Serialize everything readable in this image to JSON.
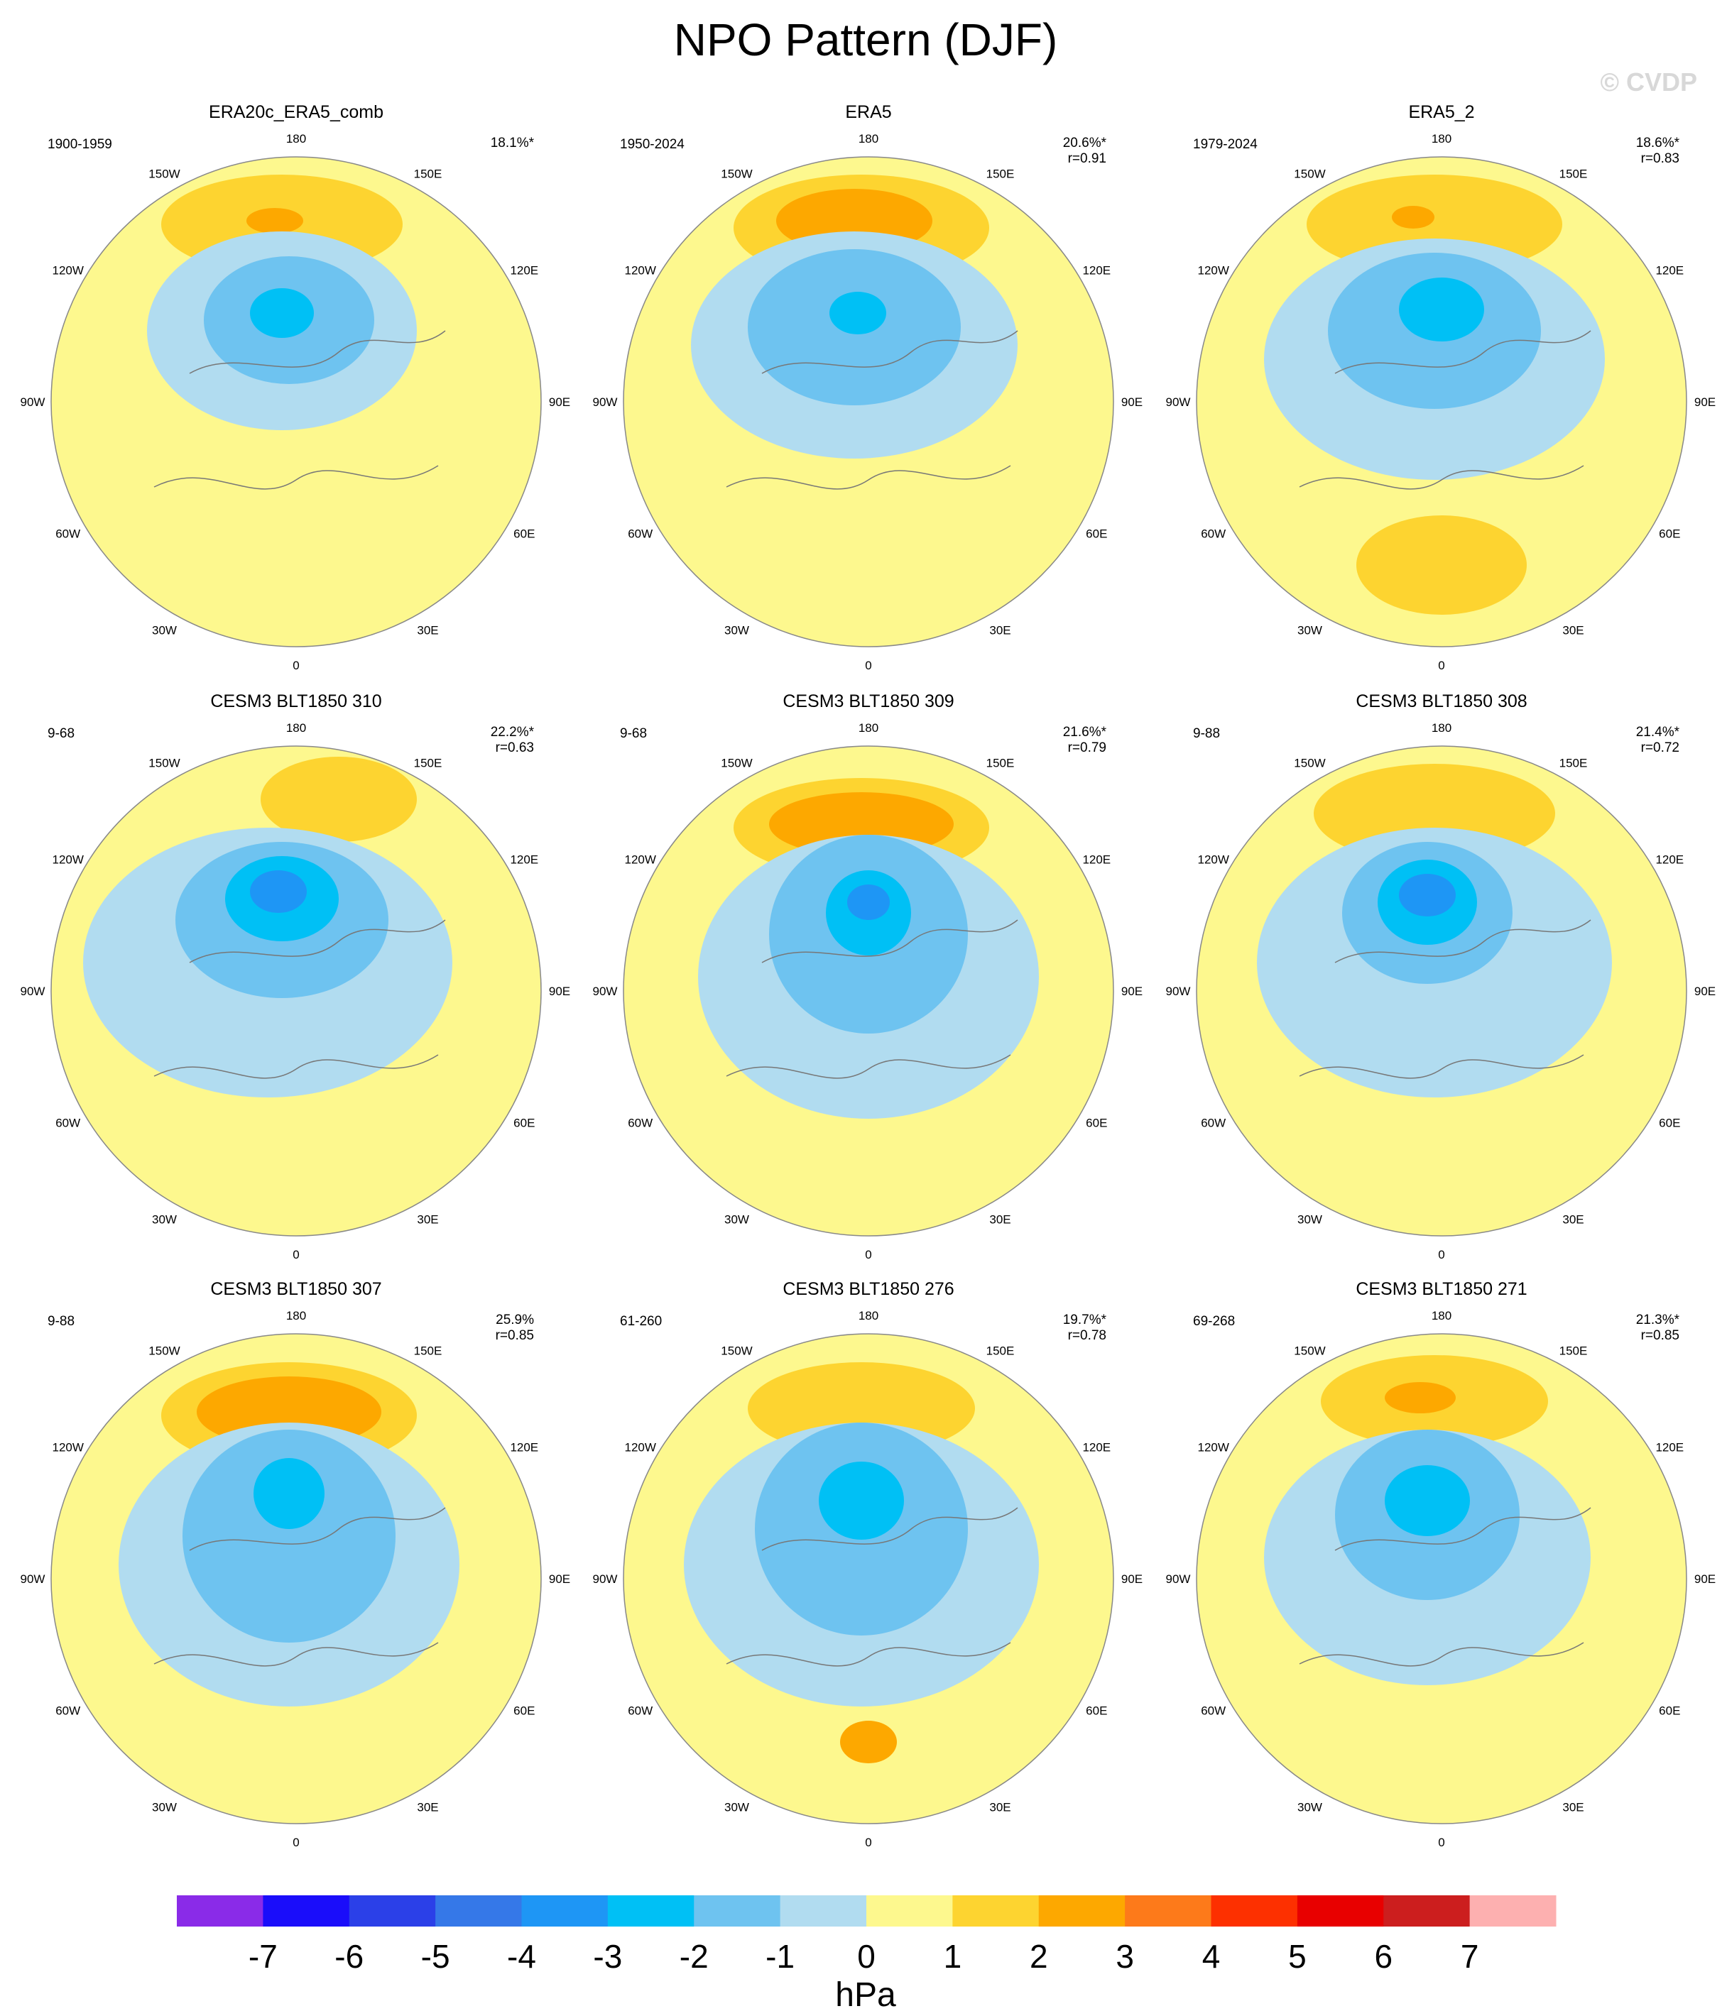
{
  "title": "NPO Pattern (DJF)",
  "watermark": "© CVDP",
  "longitude_labels": [
    "180",
    "150E",
    "120E",
    "90E",
    "60E",
    "30E",
    "0",
    "30W",
    "60W",
    "90W",
    "120W",
    "150W"
  ],
  "colorbar": {
    "unit": "hPa",
    "tick_labels": [
      "-7",
      "-6",
      "-5",
      "-4",
      "-3",
      "-2",
      "-1",
      "0",
      "1",
      "2",
      "3",
      "4",
      "5",
      "6",
      "7"
    ],
    "colors": [
      "#8a2be8",
      "#1a0dfa",
      "#2b40e8",
      "#3578e8",
      "#1e96f5",
      "#00c0f5",
      "#6ec3f0",
      "#b1dcf0",
      "#fdf88e",
      "#fdd430",
      "#fda800",
      "#fd7a1a",
      "#fd3000",
      "#e80000",
      "#cc1e1e",
      "#fdb0b0"
    ]
  },
  "panels": [
    {
      "title": "ERA20c_ERA5_comb",
      "years": "1900-1959",
      "pct": "18.1%*",
      "r": ""
    },
    {
      "title": "ERA5",
      "years": "1950-2024",
      "pct": "20.6%*",
      "r": "r=0.91"
    },
    {
      "title": "ERA5_2",
      "years": "1979-2024",
      "pct": "18.6%*",
      "r": "r=0.83"
    },
    {
      "title": "CESM3 BLT1850 310",
      "years": "9-68",
      "pct": "22.2%*",
      "r": "r=0.63"
    },
    {
      "title": "CESM3 BLT1850 309",
      "years": "9-68",
      "pct": "21.6%*",
      "r": "r=0.79"
    },
    {
      "title": "CESM3 BLT1850 308",
      "years": "9-88",
      "pct": "21.4%*",
      "r": "r=0.72"
    },
    {
      "title": "CESM3 BLT1850 307",
      "years": "9-88",
      "pct": "25.9%",
      "r": "r=0.85"
    },
    {
      "title": "CESM3 BLT1850 276",
      "years": "61-260",
      "pct": "19.7%*",
      "r": "r=0.78"
    },
    {
      "title": "CESM3 BLT1850 271",
      "years": "69-268",
      "pct": "21.3%*",
      "r": "r=0.85"
    }
  ]
}
